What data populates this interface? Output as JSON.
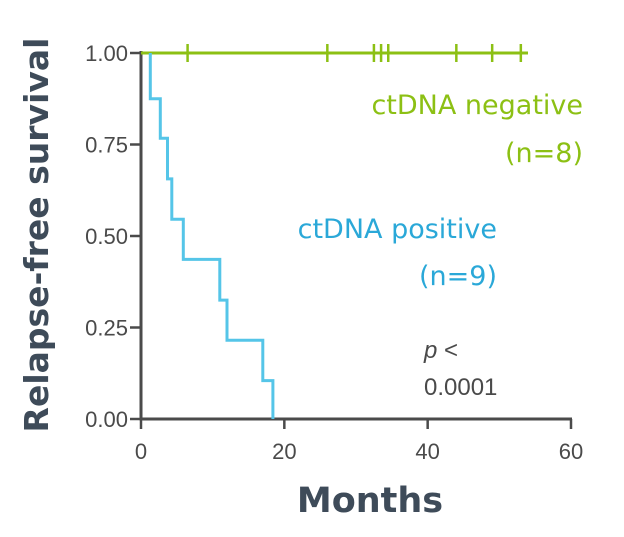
{
  "chart_data": {
    "type": "line",
    "title": "",
    "xlabel": "Months",
    "ylabel": "Relapse-free survival",
    "xlim": [
      0,
      60
    ],
    "ylim": [
      0,
      1
    ],
    "x_ticks": [
      "0",
      "20",
      "40",
      "60"
    ],
    "y_ticks": [
      "0.00",
      "0.25",
      "0.50",
      "0.75",
      "1.00"
    ],
    "grid": false,
    "series": [
      {
        "name": "ctDNA negative (n=8)",
        "label_line1": "ctDNA negative",
        "label_line2": "(n=8)",
        "color": "#8cc014",
        "steps": [
          [
            0,
            1.0
          ],
          [
            54,
            1.0
          ]
        ],
        "censor_x": [
          6.5,
          26,
          32.5,
          33.5,
          34.5,
          44,
          49,
          53
        ]
      },
      {
        "name": "ctDNA positive (n=9)",
        "label_line1": "ctDNA positive",
        "label_line2": "(n=9)",
        "color": "#55c5e8",
        "steps": [
          [
            1.3,
            1.0
          ],
          [
            1.3,
            0.875
          ],
          [
            2.7,
            0.875
          ],
          [
            2.7,
            0.767
          ],
          [
            3.7,
            0.767
          ],
          [
            3.7,
            0.656
          ],
          [
            4.3,
            0.656
          ],
          [
            4.3,
            0.546
          ],
          [
            5.9,
            0.546
          ],
          [
            5.9,
            0.436
          ],
          [
            11,
            0.436
          ],
          [
            11,
            0.325
          ],
          [
            12,
            0.325
          ],
          [
            12,
            0.215
          ],
          [
            17,
            0.215
          ],
          [
            17,
            0.105
          ],
          [
            18.4,
            0.105
          ],
          [
            18.4,
            0
          ]
        ],
        "censor_x": []
      }
    ],
    "annotations": {
      "p_label": "p",
      "p_lt": " <",
      "p_value": "0.0001"
    }
  },
  "colors": {
    "axis": "#4a4a4a",
    "title": "#3e4b59"
  }
}
